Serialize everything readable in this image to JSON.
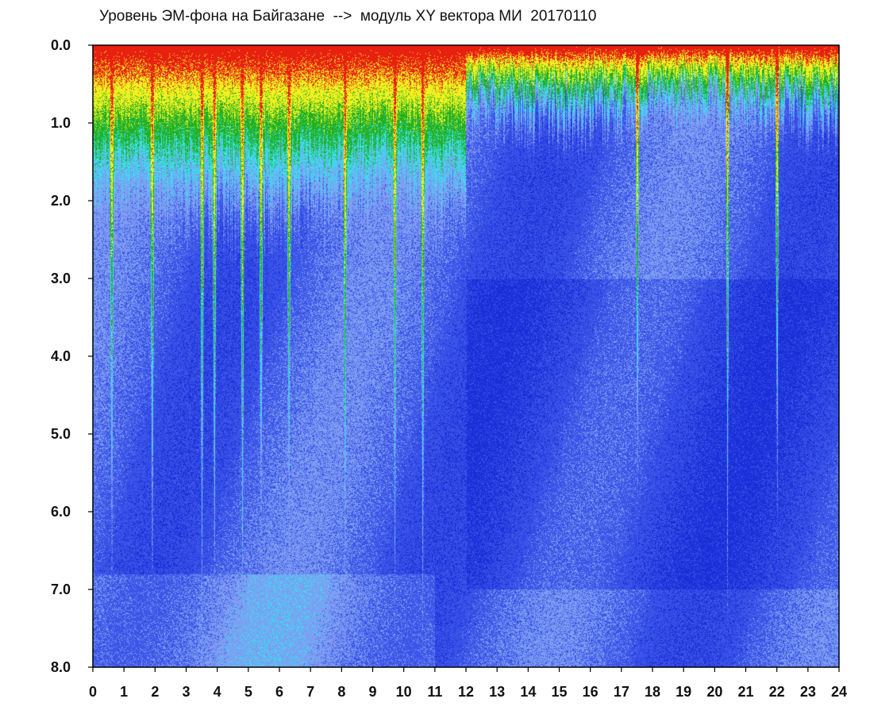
{
  "chart_data": {
    "type": "heatmap",
    "title": "Уровень ЭМ-фона на Байгазане  -->  модуль XY вектора МИ  20170110",
    "xlabel": "",
    "ylabel": "",
    "xlim": [
      0,
      24
    ],
    "ylim": [
      8.0,
      0.0
    ],
    "y_inverted": true,
    "x_ticks": [
      "0",
      "1",
      "2",
      "3",
      "4",
      "5",
      "6",
      "7",
      "8",
      "9",
      "10",
      "11",
      "12",
      "13",
      "14",
      "15",
      "16",
      "17",
      "18",
      "19",
      "20",
      "21",
      "22",
      "23",
      "24"
    ],
    "y_ticks": [
      "0.0",
      "1.0",
      "2.0",
      "3.0",
      "4.0",
      "5.0",
      "6.0",
      "7.0",
      "8.0"
    ],
    "grid": false,
    "legend": "none",
    "colormap": [
      "#1a2fd8",
      "#3a55e8",
      "#7f9cf2",
      "#38e0f0",
      "#22b022",
      "#f0f020",
      "#e82010"
    ],
    "regions": [
      {
        "x_from": 0.0,
        "x_to": 12.0,
        "high_level_depth": 1.4,
        "description_level": "strong"
      },
      {
        "x_from": 12.0,
        "x_to": 24.0,
        "high_level_depth": 0.6,
        "description_level": "moderate"
      }
    ],
    "vertical_spikes_x": [
      0.6,
      1.9,
      3.5,
      3.9,
      4.8,
      5.4,
      6.3,
      8.1,
      9.7,
      10.6,
      17.5,
      20.4,
      22.0
    ]
  }
}
